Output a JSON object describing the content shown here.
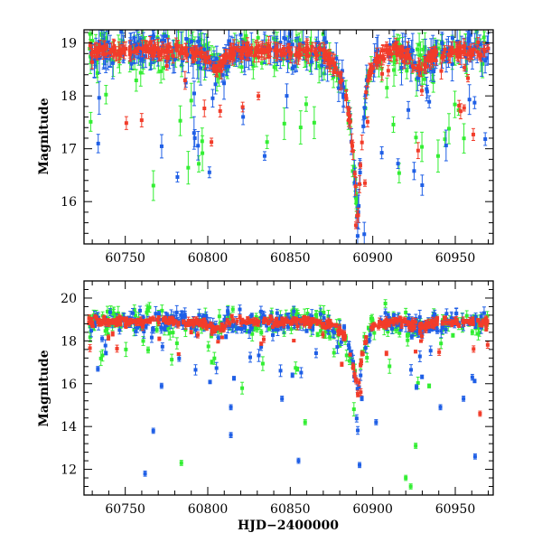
{
  "chart_data": [
    {
      "type": "scatter",
      "panel": "top",
      "title": "",
      "xlabel": "",
      "ylabel": "Magnitude",
      "xlim": [
        60725,
        60973
      ],
      "ylim": [
        19.25,
        15.2
      ],
      "y_inverted": true,
      "xticks": [
        60750,
        60800,
        60850,
        60900,
        60950
      ],
      "xtick_labels": [
        "60750",
        "60800",
        "60850",
        "60900",
        "60950"
      ],
      "yticks": [
        16,
        17,
        18,
        19
      ],
      "ytick_labels": [
        "16",
        "17",
        "18",
        "19"
      ],
      "grid": false,
      "series": [
        {
          "name": "green",
          "color": "#33ee33"
        },
        {
          "name": "blue",
          "color": "#1f5fe6"
        },
        {
          "name": "red",
          "color": "#f23c2a"
        }
      ],
      "light_curve": {
        "base_mag": 18.85,
        "outburst_hjd": 60891,
        "outburst_peak_mag": 15.5
      }
    },
    {
      "type": "scatter",
      "panel": "bottom",
      "title": "",
      "xlabel": "HJD−2400000",
      "ylabel": "Magnitude",
      "xlim": [
        60725,
        60973
      ],
      "ylim": [
        20.8,
        10.8
      ],
      "y_inverted": true,
      "xticks": [
        60750,
        60800,
        60850,
        60900,
        60950
      ],
      "xtick_labels": [
        "60750",
        "60800",
        "60850",
        "60900",
        "60950"
      ],
      "yticks": [
        12,
        14,
        16,
        18,
        20
      ],
      "ytick_labels": [
        "12",
        "14",
        "16",
        "18",
        "20"
      ],
      "grid": false,
      "series": [
        {
          "name": "green",
          "color": "#33ee33"
        },
        {
          "name": "blue",
          "color": "#1f5fe6"
        },
        {
          "name": "red",
          "color": "#f23c2a"
        }
      ],
      "light_curve": {
        "base_mag": 18.9,
        "outburst_hjd": 60891,
        "outburst_peak_mag": 15.5
      },
      "outliers": [
        {
          "series": "blue",
          "x": 60762,
          "y": 11.8
        },
        {
          "series": "blue",
          "x": 60767,
          "y": 13.8
        },
        {
          "series": "blue",
          "x": 60772,
          "y": 15.9
        },
        {
          "series": "green",
          "x": 60784,
          "y": 12.3
        },
        {
          "series": "blue",
          "x": 60814,
          "y": 13.6
        },
        {
          "series": "blue",
          "x": 60814,
          "y": 14.9
        },
        {
          "series": "blue",
          "x": 60845,
          "y": 15.3
        },
        {
          "series": "blue",
          "x": 60855,
          "y": 12.4
        },
        {
          "series": "green",
          "x": 60859,
          "y": 14.2
        },
        {
          "series": "blue",
          "x": 60892,
          "y": 12.2
        },
        {
          "series": "blue",
          "x": 60902,
          "y": 14.2
        },
        {
          "series": "green",
          "x": 60920,
          "y": 11.6
        },
        {
          "series": "green",
          "x": 60923,
          "y": 11.2
        },
        {
          "series": "green",
          "x": 60926,
          "y": 13.1
        },
        {
          "series": "blue",
          "x": 60941,
          "y": 14.9
        },
        {
          "series": "blue",
          "x": 60955,
          "y": 15.3
        },
        {
          "series": "blue",
          "x": 60962,
          "y": 12.6
        },
        {
          "series": "red",
          "x": 60965,
          "y": 14.6
        }
      ]
    }
  ]
}
